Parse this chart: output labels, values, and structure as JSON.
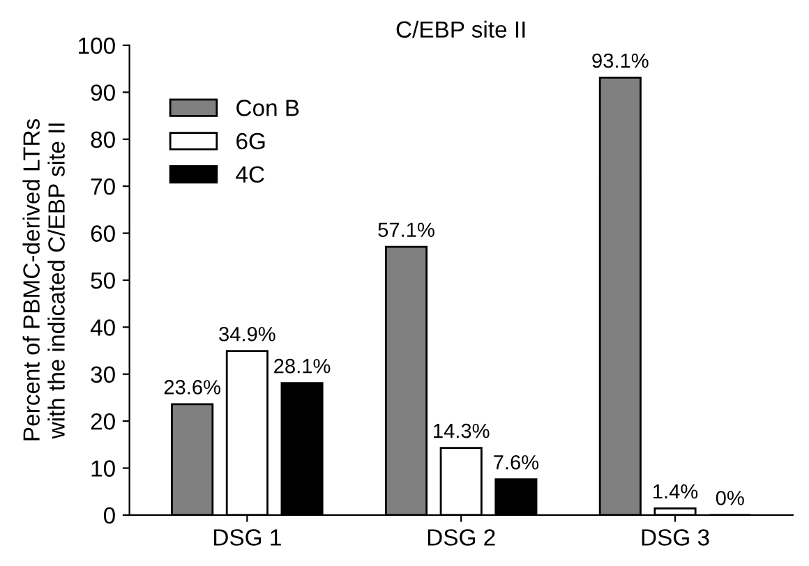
{
  "chart_data": {
    "type": "bar",
    "title": "C/EBP site II",
    "ylabel": "Percent of PBMC-derived LTRs\nwith the indicated C/EBP site II",
    "categories": [
      "DSG 1",
      "DSG 2",
      "DSG 3"
    ],
    "series": [
      {
        "name": "Con B",
        "color": "#808080",
        "values": [
          23.6,
          57.1,
          93.1
        ],
        "value_labels": [
          "23.6%",
          "57.1%",
          "93.1%"
        ]
      },
      {
        "name": "6G",
        "color": "#ffffff",
        "values": [
          34.9,
          14.3,
          1.4
        ],
        "value_labels": [
          "34.9%",
          "14.3%",
          "1.4%"
        ]
      },
      {
        "name": "4C",
        "color": "#000000",
        "values": [
          28.1,
          7.6,
          0
        ],
        "value_labels": [
          "28.1%",
          "7.6%",
          "0%"
        ]
      }
    ],
    "ylim": [
      0,
      100
    ],
    "yticks": [
      0,
      10,
      20,
      30,
      40,
      50,
      60,
      70,
      80,
      90,
      100
    ],
    "grid": false,
    "legend": "top left"
  }
}
